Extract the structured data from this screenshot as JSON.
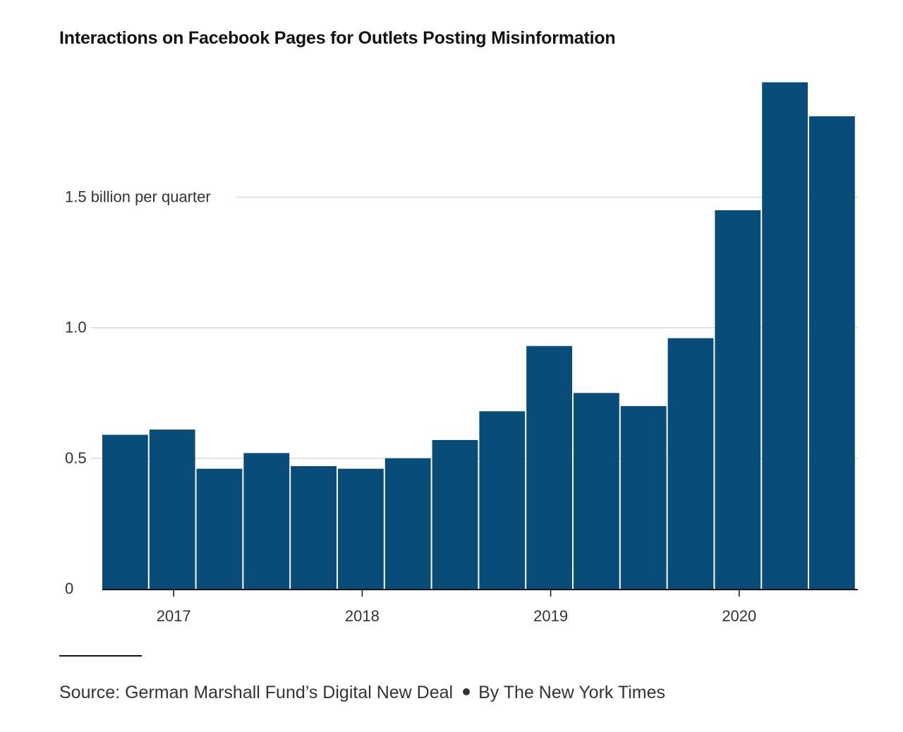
{
  "chart_data": {
    "type": "bar",
    "title": "Interactions on Facebook Pages for Outlets Posting Misinformation",
    "y_unit_label": "billion per quarter",
    "y_ticks": [
      {
        "value": 0,
        "label": "0"
      },
      {
        "value": 0.5,
        "label": "0.5"
      },
      {
        "value": 1.0,
        "label": "1.0"
      },
      {
        "value": 1.5,
        "label": "1.5 billion per quarter"
      }
    ],
    "x_ticks": [
      {
        "index": 1.0,
        "label": "2017"
      },
      {
        "index": 5.0,
        "label": "2018"
      },
      {
        "index": 9.0,
        "label": "2019"
      },
      {
        "index": 13.0,
        "label": "2020"
      }
    ],
    "ylim": [
      0,
      1.95
    ],
    "bar_color": "#084c7a",
    "values": [
      0.59,
      0.61,
      0.46,
      0.52,
      0.47,
      0.46,
      0.5,
      0.57,
      0.68,
      0.93,
      0.75,
      0.7,
      0.96,
      1.45,
      1.94,
      1.81
    ],
    "grid": true
  },
  "footer": {
    "source": "Source: German Marshall Fund’s Digital New Deal",
    "byline": "By The New York Times"
  }
}
